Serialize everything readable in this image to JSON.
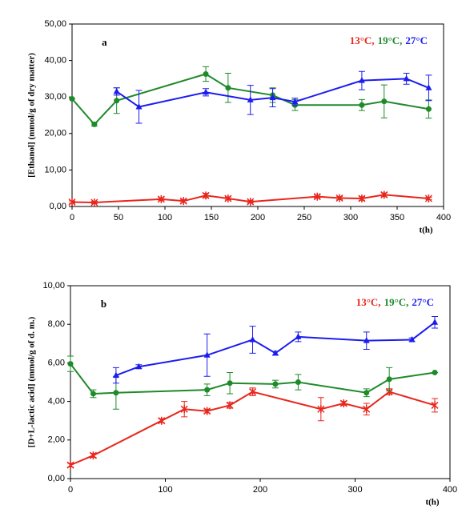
{
  "chart_data": [
    {
      "type": "line",
      "label": "a",
      "ylabel": "[Ethanol] (mmol/g of dry matter)",
      "xlabel": "t(h)",
      "legend": "upper right",
      "xlim": [
        0,
        400
      ],
      "xticks": [
        0,
        50,
        100,
        150,
        200,
        250,
        300,
        350,
        400
      ],
      "ylim": [
        0,
        50
      ],
      "yticks": [
        {
          "value": 0,
          "label": "0,00"
        },
        {
          "value": 10,
          "label": "10,00"
        },
        {
          "value": 20,
          "label": "20,00"
        },
        {
          "value": 30,
          "label": "30,00"
        },
        {
          "value": 40,
          "label": "40,00"
        },
        {
          "value": 50,
          "label": "50,00"
        }
      ],
      "series": [
        {
          "name": "13°C,",
          "color": "#e8261c",
          "marker": "star",
          "x": [
            0,
            24,
            96,
            120,
            144,
            168,
            192,
            264,
            288,
            312,
            336,
            384
          ],
          "values": [
            1.2,
            1.1,
            2.0,
            1.5,
            3.0,
            2.2,
            1.3,
            2.7,
            2.3,
            2.2,
            3.2,
            2.2
          ],
          "errors": [
            0.3,
            0.3,
            0.4,
            0.4,
            0.6,
            0.4,
            0.3,
            0.4,
            0.4,
            0.5,
            0.5,
            0.3
          ]
        },
        {
          "name": "19°C,",
          "color": "#1f8a2a",
          "marker": "circle",
          "x": [
            0,
            24,
            48,
            144,
            168,
            216,
            240,
            312,
            336,
            384
          ],
          "values": [
            29.5,
            22.5,
            29,
            36.3,
            32.5,
            30.5,
            27.8,
            27.8,
            28.8,
            26.7
          ],
          "errors": [
            0,
            0.5,
            3.5,
            2,
            4,
            2,
            1.5,
            1.5,
            4.5,
            2.5
          ]
        },
        {
          "name": "27°C",
          "color": "#1c1cf0",
          "marker": "triangle",
          "x": [
            48,
            72,
            144,
            192,
            216,
            240,
            312,
            360,
            384
          ],
          "values": [
            31.5,
            27.3,
            31.3,
            29.2,
            29.8,
            28.7,
            34.5,
            35,
            32.5
          ],
          "errors": [
            1,
            4.5,
            1,
            4,
            2.5,
            1,
            2.5,
            1.5,
            3.5
          ]
        }
      ]
    },
    {
      "type": "line",
      "label": "b",
      "ylabel": "[D+L-lactic acid] (mmol/g of d. m.)",
      "xlabel": "t(h)",
      "legend": "upper right",
      "xlim": [
        0,
        400
      ],
      "xticks": [
        0,
        100,
        200,
        300,
        400
      ],
      "ylim": [
        0,
        10
      ],
      "yticks": [
        {
          "value": 0,
          "label": "0,00"
        },
        {
          "value": 2,
          "label": "2,00"
        },
        {
          "value": 4,
          "label": "4,00"
        },
        {
          "value": 6,
          "label": "6,00"
        },
        {
          "value": 8,
          "label": "8,00"
        },
        {
          "value": 10,
          "label": "10,00"
        }
      ],
      "series": [
        {
          "name": "13°C,",
          "color": "#e8261c",
          "marker": "star",
          "x": [
            0,
            24,
            96,
            120,
            144,
            168,
            192,
            264,
            288,
            312,
            336,
            384
          ],
          "values": [
            0.7,
            1.2,
            3.0,
            3.6,
            3.5,
            3.8,
            4.5,
            3.6,
            3.9,
            3.6,
            4.5,
            3.8
          ],
          "errors": [
            0.1,
            0.1,
            0.1,
            0.4,
            0.1,
            0.15,
            0.2,
            0.6,
            0.1,
            0.3,
            0.15,
            0.35
          ]
        },
        {
          "name": "19°C,",
          "color": "#1f8a2a",
          "marker": "circle",
          "x": [
            0,
            24,
            48,
            144,
            168,
            216,
            240,
            312,
            336,
            384
          ],
          "values": [
            5.95,
            4.4,
            4.45,
            4.6,
            4.95,
            4.9,
            5.0,
            4.45,
            5.15,
            5.5
          ],
          "errors": [
            0.4,
            0.2,
            0.85,
            0.3,
            0.55,
            0.2,
            0.4,
            0.2,
            0.6,
            0
          ]
        },
        {
          "name": "27°C",
          "color": "#1c1cf0",
          "marker": "triangle",
          "x": [
            48,
            72,
            144,
            192,
            216,
            240,
            312,
            360,
            384
          ],
          "values": [
            5.35,
            5.8,
            6.4,
            7.2,
            6.5,
            7.35,
            7.15,
            7.2,
            8.1
          ],
          "errors": [
            0.4,
            0.1,
            1.1,
            0.7,
            0.1,
            0.25,
            0.45,
            0.1,
            0.3
          ]
        }
      ]
    }
  ]
}
